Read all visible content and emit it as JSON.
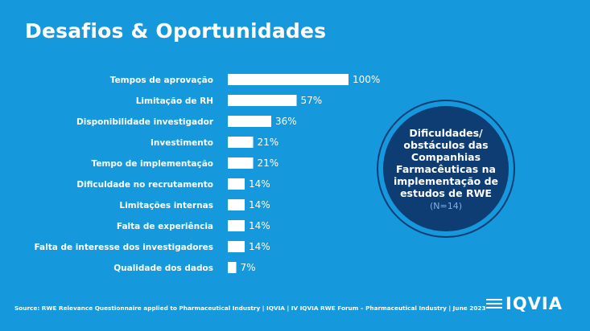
{
  "slide": {
    "title": "Desafios & Oportunidades",
    "callout": {
      "text": "Dificuldades/ obstáculos das Companhias Farmacêuticas na implementação de estudos de RWE",
      "n": "(N=14)"
    },
    "footer": "Source: RWE Relevance Questionnaire applied to Pharmaceutical Industry   |   IQVIA | IV IQVIA RWE Forum – Pharmaceutical Industry | June 2023",
    "logo": "IQVIA"
  },
  "colors": {
    "background": "#1598dc",
    "bars": "#ffffff",
    "callout": "#0d3d73"
  },
  "chart_data": {
    "type": "bar",
    "orientation": "horizontal",
    "categories": [
      "Tempos de aprovação",
      "Limitação de RH",
      "Disponibilidade investigador",
      "Investimento",
      "Tempo de implementação",
      "Dificuldade no recrutamento",
      "Limitações internas",
      "Falta de experiência",
      "Falta de interesse dos investigadores",
      "Qualidade dos dados"
    ],
    "values": [
      100,
      57,
      36,
      21,
      21,
      14,
      14,
      14,
      14,
      7
    ],
    "labels": [
      "100%",
      "57%",
      "36%",
      "21%",
      "21%",
      "14%",
      "14%",
      "14%",
      "14%",
      "7%"
    ],
    "xlim": [
      0,
      100
    ],
    "grid": false
  }
}
